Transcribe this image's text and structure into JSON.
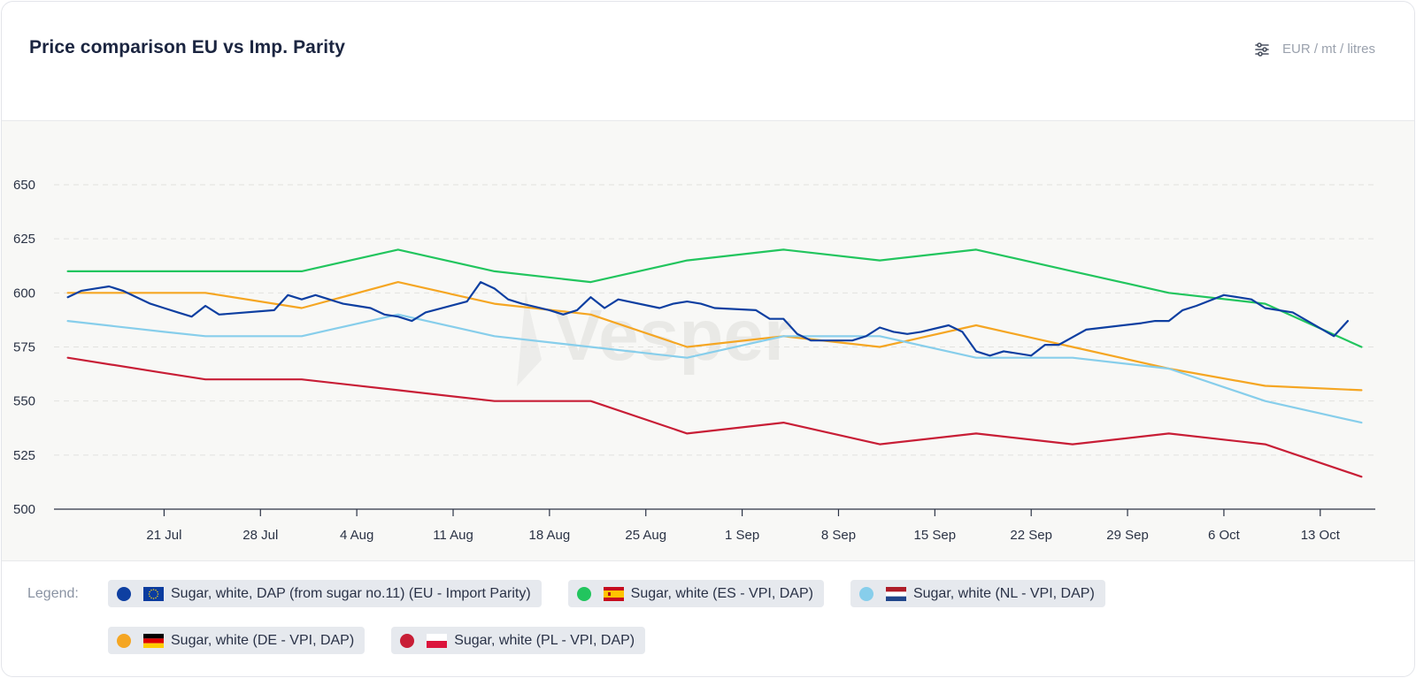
{
  "title": "Price comparison EU vs Imp. Parity",
  "units": {
    "icon": "sliders-icon",
    "label": "EUR / mt / litres"
  },
  "watermark": "Vesper",
  "legend": {
    "label": "Legend:",
    "items": [
      {
        "label": "Sugar, white, DAP (from sugar no.11) (EU - Import Parity)",
        "color": "#0e3fa1",
        "flag": "eu-flag-icon"
      },
      {
        "label": "Sugar, white (ES - VPI, DAP)",
        "color": "#22c55e",
        "flag": "spain-flag-icon"
      },
      {
        "label": "Sugar, white (NL - VPI, DAP)",
        "color": "#87ceeb",
        "flag": "netherlands-flag-icon"
      },
      {
        "label": "Sugar, white (DE - VPI, DAP)",
        "color": "#f5a623",
        "flag": "germany-flag-icon"
      },
      {
        "label": "Sugar, white (PL - VPI, DAP)",
        "color": "#c81e36",
        "flag": "poland-flag-icon"
      }
    ]
  },
  "chart_data": {
    "type": "line",
    "title": "Price comparison EU vs Imp. Parity",
    "xlabel": "",
    "ylabel": "",
    "ylim": [
      500,
      650
    ],
    "yticks": [
      500,
      525,
      550,
      575,
      600,
      625,
      650
    ],
    "xlim": [
      "2025-07-13",
      "2025-10-17"
    ],
    "xticks": [
      {
        "date": "2025-07-21",
        "label": "21 Jul"
      },
      {
        "date": "2025-07-28",
        "label": "28 Jul"
      },
      {
        "date": "2025-08-04",
        "label": "4 Aug"
      },
      {
        "date": "2025-08-11",
        "label": "11 Aug"
      },
      {
        "date": "2025-08-18",
        "label": "18 Aug"
      },
      {
        "date": "2025-08-25",
        "label": "25 Aug"
      },
      {
        "date": "2025-09-01",
        "label": "1 Sep"
      },
      {
        "date": "2025-09-08",
        "label": "8 Sep"
      },
      {
        "date": "2025-09-15",
        "label": "15 Sep"
      },
      {
        "date": "2025-09-22",
        "label": "22 Sep"
      },
      {
        "date": "2025-09-29",
        "label": "29 Sep"
      },
      {
        "date": "2025-10-06",
        "label": "6 Oct"
      },
      {
        "date": "2025-10-13",
        "label": "13 Oct"
      }
    ],
    "grid": "horizontal-dashed",
    "legend_position": "bottom",
    "series": [
      {
        "name": "Sugar, white (ES - VPI, DAP)",
        "color": "#22c55e",
        "points": [
          [
            "2025-07-14",
            610
          ],
          [
            "2025-07-21",
            610
          ],
          [
            "2025-07-28",
            610
          ],
          [
            "2025-07-31",
            610
          ],
          [
            "2025-08-07",
            620
          ],
          [
            "2025-08-14",
            610
          ],
          [
            "2025-08-21",
            605
          ],
          [
            "2025-08-28",
            615
          ],
          [
            "2025-09-04",
            620
          ],
          [
            "2025-09-11",
            615
          ],
          [
            "2025-09-18",
            620
          ],
          [
            "2025-09-25",
            610
          ],
          [
            "2025-10-02",
            600
          ],
          [
            "2025-10-09",
            595
          ],
          [
            "2025-10-16",
            575
          ]
        ]
      },
      {
        "name": "Sugar, white (DE - VPI, DAP)",
        "color": "#f5a623",
        "points": [
          [
            "2025-07-14",
            600
          ],
          [
            "2025-07-21",
            600
          ],
          [
            "2025-07-24",
            600
          ],
          [
            "2025-07-31",
            593
          ],
          [
            "2025-08-07",
            605
          ],
          [
            "2025-08-14",
            595
          ],
          [
            "2025-08-21",
            590
          ],
          [
            "2025-08-28",
            575
          ],
          [
            "2025-09-04",
            580
          ],
          [
            "2025-09-11",
            575
          ],
          [
            "2025-09-18",
            585
          ],
          [
            "2025-09-25",
            575
          ],
          [
            "2025-10-02",
            565
          ],
          [
            "2025-10-09",
            557
          ],
          [
            "2025-10-16",
            555
          ]
        ]
      },
      {
        "name": "Sugar, white (NL - VPI, DAP)",
        "color": "#87ceeb",
        "points": [
          [
            "2025-07-14",
            587
          ],
          [
            "2025-07-21",
            582
          ],
          [
            "2025-07-24",
            580
          ],
          [
            "2025-07-31",
            580
          ],
          [
            "2025-08-07",
            590
          ],
          [
            "2025-08-14",
            580
          ],
          [
            "2025-08-21",
            575
          ],
          [
            "2025-08-28",
            570
          ],
          [
            "2025-09-04",
            580
          ],
          [
            "2025-09-11",
            580
          ],
          [
            "2025-09-18",
            570
          ],
          [
            "2025-09-25",
            570
          ],
          [
            "2025-10-02",
            565
          ],
          [
            "2025-10-09",
            550
          ],
          [
            "2025-10-16",
            540
          ]
        ]
      },
      {
        "name": "Sugar, white (PL - VPI, DAP)",
        "color": "#c81e36",
        "points": [
          [
            "2025-07-14",
            570
          ],
          [
            "2025-07-21",
            563
          ],
          [
            "2025-07-24",
            560
          ],
          [
            "2025-07-31",
            560
          ],
          [
            "2025-08-07",
            555
          ],
          [
            "2025-08-14",
            550
          ],
          [
            "2025-08-21",
            550
          ],
          [
            "2025-08-28",
            535
          ],
          [
            "2025-09-04",
            540
          ],
          [
            "2025-09-11",
            530
          ],
          [
            "2025-09-18",
            535
          ],
          [
            "2025-09-25",
            530
          ],
          [
            "2025-10-02",
            535
          ],
          [
            "2025-10-09",
            530
          ],
          [
            "2025-10-16",
            515
          ]
        ]
      },
      {
        "name": "Sugar, white, DAP (from sugar no.11) (EU - Import Parity)",
        "color": "#0e3fa1",
        "points": [
          [
            "2025-07-14",
            598
          ],
          [
            "2025-07-15",
            601
          ],
          [
            "2025-07-16",
            602
          ],
          [
            "2025-07-17",
            603
          ],
          [
            "2025-07-18",
            601
          ],
          [
            "2025-07-19",
            598
          ],
          [
            "2025-07-20",
            595
          ],
          [
            "2025-07-21",
            593
          ],
          [
            "2025-07-22",
            591
          ],
          [
            "2025-07-23",
            589
          ],
          [
            "2025-07-24",
            594
          ],
          [
            "2025-07-25",
            590
          ],
          [
            "2025-07-29",
            592
          ],
          [
            "2025-07-30",
            599
          ],
          [
            "2025-07-31",
            597
          ],
          [
            "2025-08-01",
            599
          ],
          [
            "2025-08-02",
            597
          ],
          [
            "2025-08-03",
            595
          ],
          [
            "2025-08-04",
            594
          ],
          [
            "2025-08-05",
            593
          ],
          [
            "2025-08-06",
            590
          ],
          [
            "2025-08-07",
            589
          ],
          [
            "2025-08-08",
            587
          ],
          [
            "2025-08-09",
            591
          ],
          [
            "2025-08-12",
            596
          ],
          [
            "2025-08-13",
            605
          ],
          [
            "2025-08-14",
            602
          ],
          [
            "2025-08-15",
            597
          ],
          [
            "2025-08-16",
            595
          ],
          [
            "2025-08-18",
            592
          ],
          [
            "2025-08-19",
            590
          ],
          [
            "2025-08-20",
            592
          ],
          [
            "2025-08-21",
            598
          ],
          [
            "2025-08-22",
            593
          ],
          [
            "2025-08-23",
            597
          ],
          [
            "2025-08-26",
            593
          ],
          [
            "2025-08-27",
            595
          ],
          [
            "2025-08-28",
            596
          ],
          [
            "2025-08-29",
            595
          ],
          [
            "2025-08-30",
            593
          ],
          [
            "2025-09-02",
            592
          ],
          [
            "2025-09-03",
            588
          ],
          [
            "2025-09-04",
            588
          ],
          [
            "2025-09-05",
            581
          ],
          [
            "2025-09-06",
            578
          ],
          [
            "2025-09-09",
            578
          ],
          [
            "2025-09-10",
            580
          ],
          [
            "2025-09-11",
            584
          ],
          [
            "2025-09-12",
            582
          ],
          [
            "2025-09-13",
            581
          ],
          [
            "2025-09-14",
            582
          ],
          [
            "2025-09-16",
            585
          ],
          [
            "2025-09-17",
            582
          ],
          [
            "2025-09-18",
            573
          ],
          [
            "2025-09-19",
            571
          ],
          [
            "2025-09-20",
            573
          ],
          [
            "2025-09-22",
            571
          ],
          [
            "2025-09-23",
            576
          ],
          [
            "2025-09-24",
            576
          ],
          [
            "2025-09-26",
            583
          ],
          [
            "2025-09-30",
            586
          ],
          [
            "2025-10-01",
            587
          ],
          [
            "2025-10-02",
            587
          ],
          [
            "2025-10-03",
            592
          ],
          [
            "2025-10-04",
            594
          ],
          [
            "2025-10-06",
            599
          ],
          [
            "2025-10-07",
            598
          ],
          [
            "2025-10-08",
            597
          ],
          [
            "2025-10-09",
            593
          ],
          [
            "2025-10-11",
            591
          ],
          [
            "2025-10-14",
            580
          ],
          [
            "2025-10-15",
            587
          ]
        ]
      }
    ]
  }
}
